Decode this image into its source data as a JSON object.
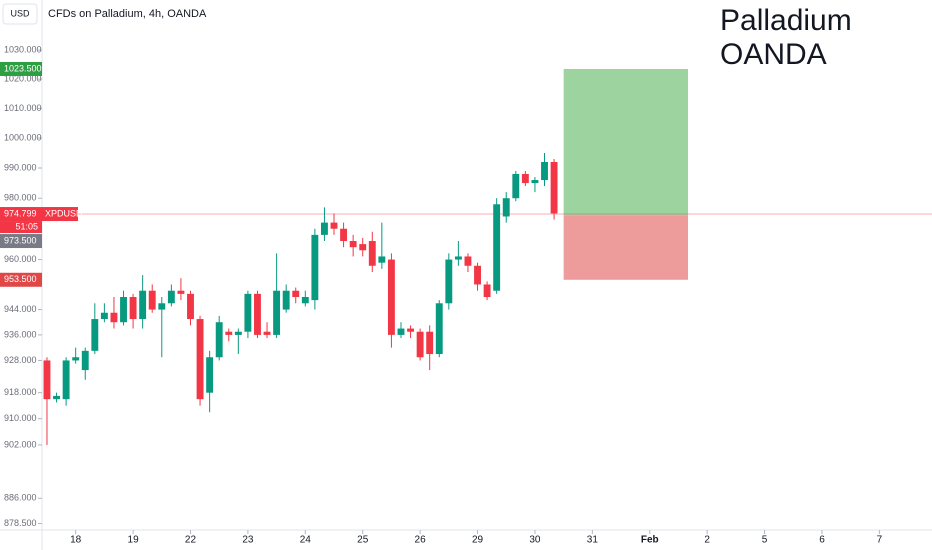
{
  "chart_data": {
    "type": "candlestick",
    "title": "CFDs on Palladium, 4h, OANDA",
    "currency": "USD",
    "annotation": [
      "Palladium",
      "OANDA"
    ],
    "log": true,
    "up_color": "#089981",
    "down_color": "#f23645",
    "open": [
      928,
      916,
      916,
      928,
      925,
      931,
      941,
      943,
      940,
      948,
      941,
      950,
      944,
      946,
      950,
      949,
      941,
      918,
      929,
      937,
      936,
      937,
      949,
      937,
      936,
      944,
      950,
      946,
      947,
      968,
      972,
      970,
      966,
      965,
      966,
      959,
      960,
      936,
      938,
      937,
      937,
      930,
      946,
      960,
      961,
      958,
      952,
      950,
      974,
      980,
      988,
      985,
      986,
      992
    ],
    "high": [
      929,
      918,
      929,
      932,
      932,
      946,
      946,
      948,
      950,
      949,
      955,
      952,
      948,
      952,
      954,
      950,
      942,
      931,
      942,
      938,
      938,
      950,
      950,
      940,
      962,
      952,
      951,
      950,
      970,
      977,
      975,
      972,
      968,
      967,
      969,
      972,
      962,
      940,
      939,
      938,
      939,
      947,
      962,
      966,
      962,
      959,
      953,
      980,
      982,
      989,
      989,
      987,
      995,
      993
    ],
    "low": [
      902,
      915,
      914,
      927,
      922,
      930,
      940,
      938,
      939,
      938,
      938,
      943,
      929,
      945,
      947,
      939,
      914,
      912,
      928,
      934,
      930,
      935,
      935,
      935,
      935,
      943,
      946,
      945,
      944,
      966,
      968,
      964,
      961,
      961,
      956,
      957,
      932,
      935,
      935,
      928,
      925,
      929,
      944,
      958,
      956,
      950,
      947,
      949,
      972,
      979,
      984,
      982,
      984,
      973
    ],
    "close": [
      916,
      917,
      928,
      929,
      931,
      941,
      943,
      940,
      948,
      941,
      950,
      944,
      946,
      950,
      949,
      941,
      916,
      929,
      940,
      936,
      937,
      949,
      936,
      936,
      950,
      950,
      948,
      948,
      968,
      972,
      970,
      966,
      964,
      963,
      958,
      961,
      936,
      938,
      937,
      929,
      930,
      946,
      960,
      961,
      958,
      952,
      948,
      978,
      980,
      988,
      985,
      986,
      992,
      975
    ],
    "xlim": [
      -0.52,
      92.5
    ],
    "xticks": [
      {
        "value": 3,
        "label": "18"
      },
      {
        "value": 9,
        "label": "19"
      },
      {
        "value": 15,
        "label": "22"
      },
      {
        "value": 21,
        "label": "23"
      },
      {
        "value": 27,
        "label": "24"
      },
      {
        "value": 33,
        "label": "25"
      },
      {
        "value": 39,
        "label": "26"
      },
      {
        "value": 45,
        "label": "29"
      },
      {
        "value": 51,
        "label": "30"
      },
      {
        "value": 57,
        "label": "31"
      },
      {
        "value": 63,
        "label": "Feb"
      },
      {
        "value": 69,
        "label": "2"
      },
      {
        "value": 75,
        "label": "5"
      },
      {
        "value": 81,
        "label": "6"
      },
      {
        "value": 87,
        "label": "7"
      }
    ],
    "ylim": [
      876.6,
      1047.5
    ],
    "yticks": [
      {
        "value": 1030,
        "label": "1030.000"
      },
      {
        "value": 1020,
        "label": "1020.000"
      },
      {
        "value": 1010,
        "label": "1010.000"
      },
      {
        "value": 1000,
        "label": "1000.000"
      },
      {
        "value": 990,
        "label": "990.000"
      },
      {
        "value": 980,
        "label": "980.000"
      },
      {
        "value": 960,
        "label": "960.000"
      },
      {
        "value": 944,
        "label": "944.000"
      },
      {
        "value": 936,
        "label": "936.000"
      },
      {
        "value": 928,
        "label": "928.000"
      },
      {
        "value": 918,
        "label": "918.000"
      },
      {
        "value": 910,
        "label": "910.000"
      },
      {
        "value": 902,
        "label": "902.000"
      },
      {
        "value": 886,
        "label": "886.000"
      },
      {
        "value": 878.5,
        "label": "878.500"
      }
    ],
    "current": {
      "value": 974.799,
      "label": "974.799",
      "symbol": "XPDUSD",
      "countdown": "51:05",
      "color": "#f23645"
    },
    "bid": {
      "value": 973.5,
      "label": "973.500",
      "color": "#787b86"
    },
    "position": {
      "start": 54,
      "end": 67,
      "entry": 974.3,
      "target": {
        "value": 1023.5,
        "label": "1023.500"
      },
      "stop": {
        "value": 953.5,
        "label": "953.500"
      },
      "profit_color": "#4caf50",
      "loss_color": "#e04848"
    }
  }
}
